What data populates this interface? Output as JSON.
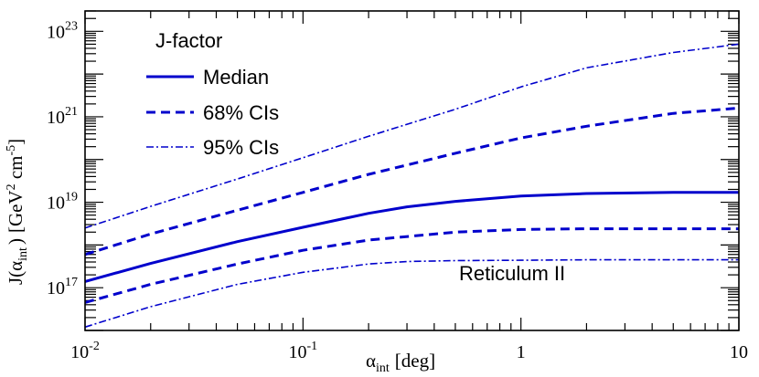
{
  "chart_data": {
    "type": "line",
    "xscale": "log",
    "yscale": "log",
    "xlim": [
      0.01,
      10
    ],
    "ylim": [
      1e+16,
      3e+23
    ],
    "xlabel": {
      "main": "α",
      "sub": "int",
      "unit": "[deg]"
    },
    "ylabel": {
      "main": "J(α",
      "sub": "int",
      "close": ")",
      "unit_pre": "[GeV",
      "sup1": "2",
      "unit_mid": " cm",
      "sup2": "-5",
      "unit_post": "]"
    },
    "x_ticks": [
      {
        "value": 0.01,
        "base": "10",
        "exp": "-2"
      },
      {
        "value": 0.1,
        "base": "10",
        "exp": "-1"
      },
      {
        "value": 1,
        "base": "1",
        "exp": ""
      },
      {
        "value": 10,
        "base": "10",
        "exp": ""
      }
    ],
    "y_ticks": [
      {
        "value": 1e+17,
        "base": "10",
        "exp": "17"
      },
      {
        "value": 1e+19,
        "base": "10",
        "exp": "19"
      },
      {
        "value": 1e+21,
        "base": "10",
        "exp": "21"
      },
      {
        "value": 1e+23,
        "base": "10",
        "exp": "23"
      }
    ],
    "legend": {
      "title": "J-factor",
      "position": "top-left",
      "entries": [
        "Median",
        "68% CIs",
        "95% CIs"
      ]
    },
    "annotation": "Reticulum II",
    "color": "#0000cc",
    "series": [
      {
        "name": "95% upper",
        "legend": "95% CIs",
        "style": "dashdot",
        "x": [
          0.01,
          0.02,
          0.05,
          0.1,
          0.2,
          0.5,
          1,
          2,
          5,
          10
        ],
        "y": [
          2.5e+18,
          8e+18,
          3.5e+19,
          1.1e+20,
          3.5e+20,
          1.5e+21,
          5e+21,
          1.4e+22,
          3.2e+22,
          5e+22
        ]
      },
      {
        "name": "68% upper",
        "legend": "68% CIs",
        "style": "dashed",
        "x": [
          0.01,
          0.02,
          0.05,
          0.1,
          0.2,
          0.5,
          1,
          2,
          5,
          10
        ],
        "y": [
          6e+17,
          1.8e+18,
          6.5e+18,
          1.7e+19,
          4.5e+19,
          1.4e+20,
          3.2e+20,
          6e+20,
          1.2e+21,
          1.6e+21
        ]
      },
      {
        "name": "Median",
        "legend": "Median",
        "style": "solid",
        "x": [
          0.01,
          0.02,
          0.05,
          0.1,
          0.2,
          0.3,
          0.5,
          1,
          2,
          5,
          10
        ],
        "y": [
          1.4e+17,
          3.7e+17,
          1.2e+18,
          2.6e+18,
          5.5e+18,
          7.8e+18,
          1.05e+19,
          1.4e+19,
          1.6e+19,
          1.7e+19,
          1.7e+19
        ]
      },
      {
        "name": "68% lower",
        "legend": "68% CIs",
        "style": "dashed",
        "x": [
          0.01,
          0.02,
          0.05,
          0.1,
          0.2,
          0.5,
          1,
          2,
          5,
          10
        ],
        "y": [
          4.5e+16,
          1.2e+17,
          3.6e+17,
          7.5e+17,
          1.3e+18,
          2e+18,
          2.3e+18,
          2.4e+18,
          2.4e+18,
          2.4e+18
        ]
      },
      {
        "name": "95% lower",
        "legend": "95% CIs",
        "style": "dashdot",
        "x": [
          0.01,
          0.02,
          0.05,
          0.1,
          0.2,
          0.3,
          0.5,
          1,
          2,
          5,
          10
        ],
        "y": [
          1.2e+16,
          3.6e+16,
          1.2e+17,
          2.3e+17,
          3.6e+17,
          4.1e+17,
          4.3e+17,
          4.4e+17,
          4.5e+17,
          4.5e+17,
          4.5e+17
        ]
      }
    ]
  }
}
